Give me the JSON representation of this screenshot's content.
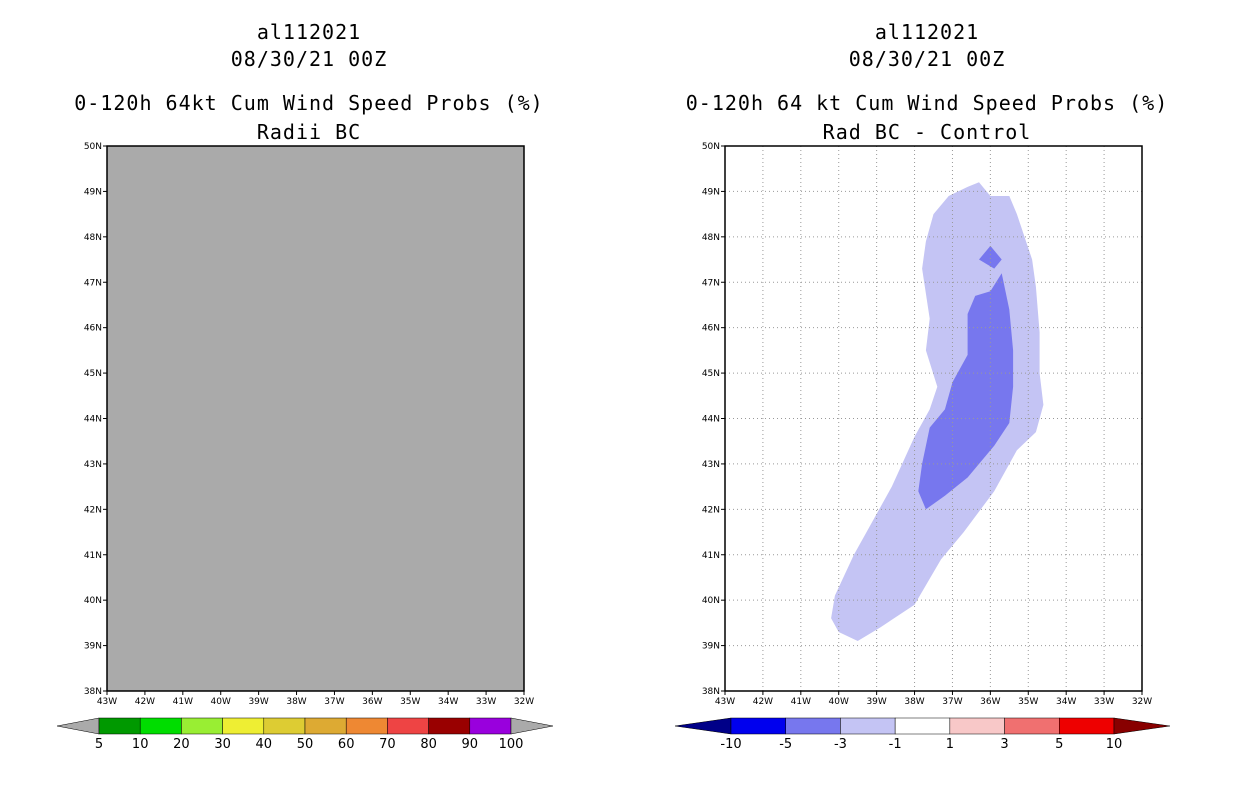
{
  "left_panel": {
    "storm_id": "al112021",
    "datetime": "08/30/21 00Z",
    "title": "0-120h 64kt Cum Wind Speed Probs (%)",
    "subtitle": "Radii BC",
    "colorbar": {
      "labels": [
        "5",
        "10",
        "20",
        "30",
        "40",
        "50",
        "60",
        "70",
        "80",
        "90",
        "100"
      ],
      "colors": [
        "#009900",
        "#00dd00",
        "#99ee33",
        "#eeee33",
        "#ddcc33",
        "#ddaa33",
        "#ee8833",
        "#ee4444",
        "#990000",
        "#9900dd"
      ],
      "under_color": "#aaaaaa",
      "over_color": "#aaaaaa"
    }
  },
  "right_panel": {
    "storm_id": "al112021",
    "datetime": "08/30/21 00Z",
    "title": "0-120h 64 kt Cum Wind Speed Probs (%)",
    "subtitle": "Rad BC - Control",
    "colorbar": {
      "labels": [
        "-10",
        "-5",
        "-3",
        "-1",
        "1",
        "3",
        "5",
        "10"
      ],
      "colors": [
        "#0000ee",
        "#7777ee",
        "#c4c4f4",
        "#ffffff",
        "#f8c8c8",
        "#f07070",
        "#ee0000"
      ],
      "under_color": "#000088",
      "over_color": "#880000"
    }
  },
  "chart_data": [
    {
      "type": "heatmap",
      "title": "0-120h 64kt Cum Wind Speed Probs (%) - Radii BC",
      "x_ticks": [
        "43W",
        "42W",
        "41W",
        "40W",
        "39W",
        "38W",
        "37W",
        "36W",
        "35W",
        "34W",
        "33W",
        "32W"
      ],
      "y_ticks": [
        "38N",
        "39N",
        "40N",
        "41N",
        "42N",
        "43N",
        "44N",
        "45N",
        "46N",
        "47N",
        "48N",
        "49N",
        "50N"
      ],
      "xlim": [
        -43,
        -32
      ],
      "ylim": [
        38,
        50
      ],
      "grid": false,
      "background": "#aaaaaa",
      "contours": []
    },
    {
      "type": "heatmap",
      "title": "0-120h 64 kt Cum Wind Speed Probs (%) - Rad BC - Control",
      "x_ticks": [
        "43W",
        "42W",
        "41W",
        "40W",
        "39W",
        "38W",
        "37W",
        "36W",
        "35W",
        "34W",
        "33W",
        "32W"
      ],
      "y_ticks": [
        "38N",
        "39N",
        "40N",
        "41N",
        "42N",
        "43N",
        "44N",
        "45N",
        "46N",
        "47N",
        "48N",
        "49N",
        "50N"
      ],
      "xlim": [
        -43,
        -32
      ],
      "ylim": [
        38,
        50
      ],
      "grid": true,
      "background": "#ffffff",
      "contours": [
        {
          "level": "-1 to -3",
          "color": "#c4c4f4",
          "points": [
            [
              -40,
              39.3
            ],
            [
              -39.5,
              39.1
            ],
            [
              -38.9,
              39.4
            ],
            [
              -38.0,
              39.9
            ],
            [
              -37.3,
              40.9
            ],
            [
              -36.7,
              41.5
            ],
            [
              -35.9,
              42.4
            ],
            [
              -35.3,
              43.3
            ],
            [
              -34.8,
              43.7
            ],
            [
              -34.6,
              44.3
            ],
            [
              -34.7,
              45.0
            ],
            [
              -34.7,
              45.9
            ],
            [
              -34.8,
              46.9
            ],
            [
              -34.9,
              47.5
            ],
            [
              -35.3,
              48.5
            ],
            [
              -35.5,
              48.9
            ],
            [
              -36.0,
              48.9
            ],
            [
              -36.3,
              49.2
            ],
            [
              -36.6,
              49.1
            ],
            [
              -37.1,
              48.9
            ],
            [
              -37.5,
              48.5
            ],
            [
              -37.7,
              47.9
            ],
            [
              -37.8,
              47.3
            ],
            [
              -37.6,
              46.2
            ],
            [
              -37.7,
              45.5
            ],
            [
              -37.4,
              44.7
            ],
            [
              -37.6,
              44.2
            ],
            [
              -38.0,
              43.6
            ],
            [
              -38.6,
              42.5
            ],
            [
              -39.2,
              41.6
            ],
            [
              -39.6,
              41.0
            ],
            [
              -40.1,
              40.1
            ],
            [
              -40.2,
              39.6
            ]
          ]
        },
        {
          "level": "-3 to -5",
          "color": "#7777ee",
          "points": [
            [
              -37.7,
              42.0
            ],
            [
              -37.2,
              42.3
            ],
            [
              -36.6,
              42.7
            ],
            [
              -35.9,
              43.4
            ],
            [
              -35.5,
              43.9
            ],
            [
              -35.4,
              44.7
            ],
            [
              -35.4,
              45.5
            ],
            [
              -35.5,
              46.4
            ],
            [
              -35.7,
              47.2
            ],
            [
              -36.0,
              46.8
            ],
            [
              -36.4,
              46.7
            ],
            [
              -36.6,
              46.3
            ],
            [
              -36.6,
              45.4
            ],
            [
              -37.0,
              44.8
            ],
            [
              -37.2,
              44.2
            ],
            [
              -37.6,
              43.8
            ],
            [
              -37.8,
              43.0
            ],
            [
              -37.9,
              42.4
            ]
          ]
        },
        {
          "level": "-3 to -5",
          "color": "#7777ee",
          "points": [
            [
              -36.0,
              47.8
            ],
            [
              -35.7,
              47.5
            ],
            [
              -35.9,
              47.3
            ],
            [
              -36.3,
              47.5
            ]
          ]
        }
      ]
    }
  ]
}
